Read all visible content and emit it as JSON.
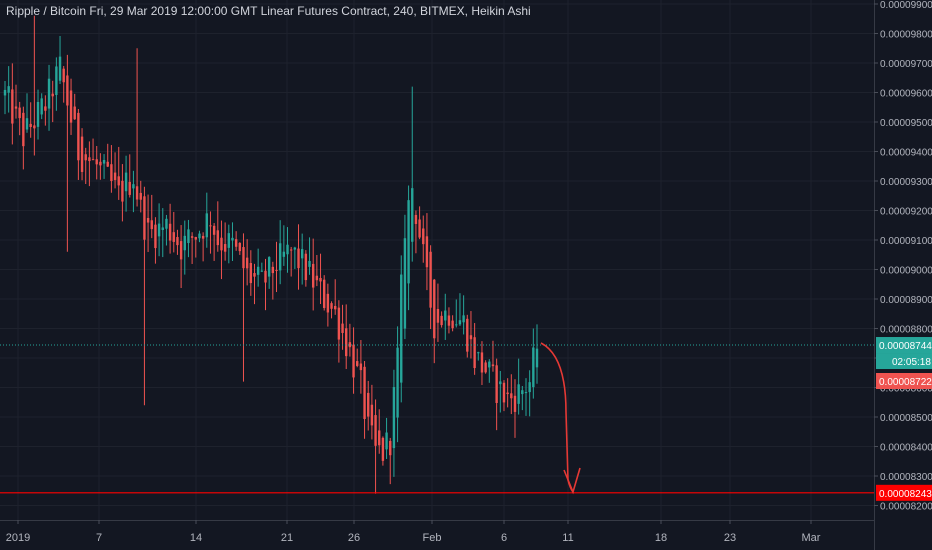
{
  "header": {
    "title": "Ripple / Bitcoin Fri, 29 Mar 2019 12:00:00 GMT Linear Futures Contract, 240, BITMEX, Heikin Ashi"
  },
  "colors": {
    "background": "#131722",
    "grid": "#1e222d",
    "up": "#26a69a",
    "down": "#ef5350",
    "horizontal_line": "#ff0000",
    "drawing": "#e53935",
    "axis_text": "#b2b5be",
    "current_price_line": "#26a69a"
  },
  "price_axis": {
    "labels": [
      "0.00008200",
      "0.00008300",
      "0.00008400",
      "0.00008500",
      "0.00008600",
      "0.00008700",
      "0.00008800",
      "0.00008900",
      "0.00009000",
      "0.00009100",
      "0.00009200",
      "0.00009300",
      "0.00009400",
      "0.00009500",
      "0.00009600",
      "0.00009700",
      "0.00009800",
      "0.00009900"
    ]
  },
  "time_axis": {
    "labels": [
      "2019",
      "7",
      "14",
      "21",
      "26",
      "Feb",
      "6",
      "11",
      "18",
      "23",
      "Mar"
    ]
  },
  "badges": {
    "current_price": "0.00008744",
    "countdown": "02:05:18",
    "marked_price": "0.00008722",
    "horizontal_level": "0.00008243",
    "partial": "0.0"
  },
  "chart_data": {
    "type": "candlestick",
    "style": "Heikin Ashi",
    "symbol": "Ripple / Bitcoin",
    "interval": "240",
    "exchange": "BITMEX",
    "ylim": [
      8.19e-05,
      9.9e-05
    ],
    "x_ticks": [
      "2019",
      "7",
      "14",
      "21",
      "26",
      "Feb",
      "6",
      "11",
      "18",
      "23",
      "Mar"
    ],
    "current_price": 8.744e-05,
    "horizontal_level": 8.243e-05,
    "close_path": [
      {
        "x": 0,
        "y": 9.59e-05
      },
      {
        "x": 5,
        "y": 9.45e-05
      },
      {
        "x": 11,
        "y": 9.56e-05
      },
      {
        "x": 15,
        "y": 9.68e-05
      },
      {
        "x": 20,
        "y": 9.4e-05
      },
      {
        "x": 25,
        "y": 9.35e-05
      },
      {
        "x": 31,
        "y": 9.25e-05
      },
      {
        "x": 35,
        "y": 9.32e-05
      },
      {
        "x": 37,
        "y": 9.2e-05
      },
      {
        "x": 39,
        "y": 9.12e-05
      },
      {
        "x": 44,
        "y": 9.15e-05
      },
      {
        "x": 48,
        "y": 9.08e-05
      },
      {
        "x": 52,
        "y": 9.12e-05
      },
      {
        "x": 56,
        "y": 9.18e-05
      },
      {
        "x": 58,
        "y": 9.1e-05
      },
      {
        "x": 62,
        "y": 9.08e-05
      },
      {
        "x": 66,
        "y": 8.98e-05
      },
      {
        "x": 70,
        "y": 8.95e-05
      },
      {
        "x": 74,
        "y": 9.02e-05
      },
      {
        "x": 78,
        "y": 9.06e-05
      },
      {
        "x": 82,
        "y": 9e-05
      },
      {
        "x": 86,
        "y": 8.92e-05
      },
      {
        "x": 90,
        "y": 8.85e-05
      },
      {
        "x": 94,
        "y": 8.72e-05
      },
      {
        "x": 97,
        "y": 8.6e-05
      },
      {
        "x": 99,
        "y": 8.45e-05
      },
      {
        "x": 101,
        "y": 8.38e-05
      },
      {
        "x": 103,
        "y": 8.38e-05
      },
      {
        "x": 105,
        "y": 8.43e-05
      },
      {
        "x": 107,
        "y": 8.7e-05
      },
      {
        "x": 109,
        "y": 9.15e-05
      },
      {
        "x": 111,
        "y": 9.28e-05
      },
      {
        "x": 113,
        "y": 9.12e-05
      },
      {
        "x": 115,
        "y": 8.95e-05
      },
      {
        "x": 117,
        "y": 8.82e-05
      },
      {
        "x": 121,
        "y": 8.86e-05
      },
      {
        "x": 125,
        "y": 8.82e-05
      },
      {
        "x": 128,
        "y": 8.7e-05
      },
      {
        "x": 131,
        "y": 8.66e-05
      },
      {
        "x": 134,
        "y": 8.6e-05
      },
      {
        "x": 137,
        "y": 8.56e-05
      },
      {
        "x": 140,
        "y": 8.58e-05
      },
      {
        "x": 143,
        "y": 8.62e-05
      },
      {
        "x": 145,
        "y": 8.74e-05
      }
    ]
  }
}
